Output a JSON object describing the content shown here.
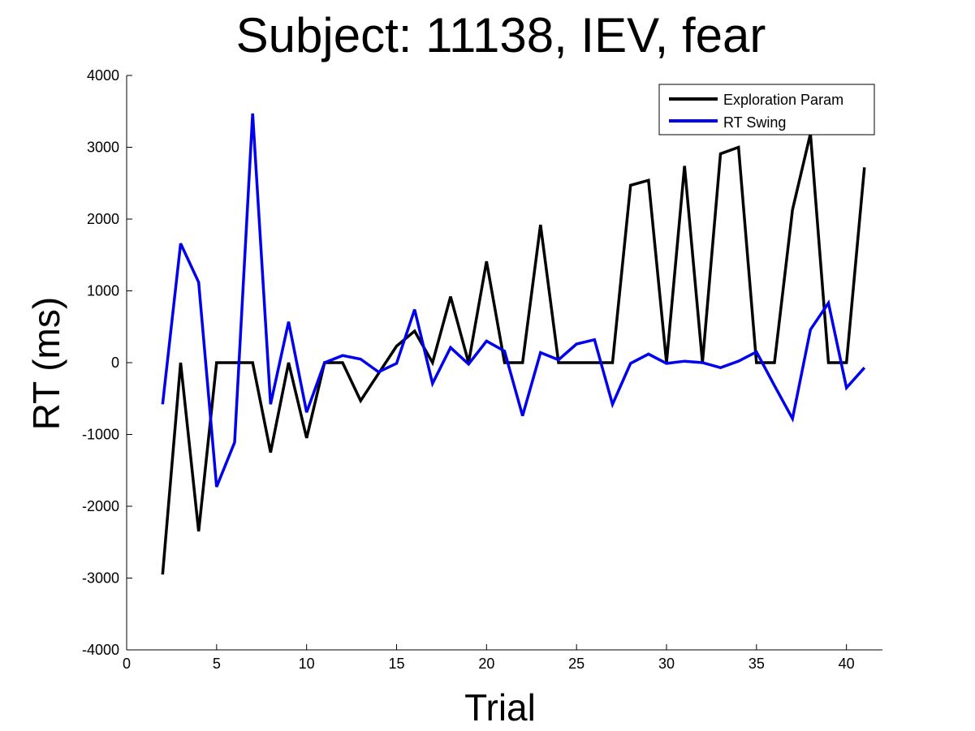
{
  "chart_data": {
    "type": "line",
    "title": "Subject: 11138, IEV, fear",
    "xlabel": "Trial",
    "ylabel": "RT (ms)",
    "xlim": [
      0,
      42
    ],
    "ylim": [
      -4000,
      4000
    ],
    "xticks": [
      0,
      5,
      10,
      15,
      20,
      25,
      30,
      35,
      40
    ],
    "yticks": [
      -4000,
      -3000,
      -2000,
      -1000,
      0,
      1000,
      2000,
      3000,
      4000
    ],
    "grid": false,
    "legend_position": "top-right",
    "x": [
      2,
      3,
      4,
      5,
      6,
      7,
      8,
      9,
      10,
      11,
      12,
      13,
      14,
      15,
      16,
      17,
      18,
      19,
      20,
      21,
      22,
      23,
      24,
      25,
      26,
      27,
      28,
      29,
      30,
      31,
      32,
      33,
      34,
      35,
      36,
      37,
      38,
      39,
      40,
      41
    ],
    "series": [
      {
        "name": "Exploration Param",
        "color": "#000000",
        "values": [
          -2950,
          0,
          -2350,
          0,
          0,
          0,
          -1250,
          0,
          -1050,
          0,
          0,
          -530,
          -150,
          230,
          440,
          0,
          920,
          0,
          1410,
          0,
          0,
          1920,
          0,
          0,
          0,
          0,
          2470,
          2540,
          0,
          2740,
          0,
          2910,
          3000,
          0,
          0,
          2130,
          3190,
          0,
          0,
          2720
        ]
      },
      {
        "name": "RT Swing",
        "color": "#0000ee",
        "values": [
          -580,
          1660,
          1120,
          -1730,
          -1110,
          3470,
          -580,
          570,
          -690,
          0,
          100,
          50,
          -130,
          -10,
          740,
          -290,
          210,
          -20,
          300,
          160,
          -740,
          140,
          40,
          260,
          320,
          -580,
          -10,
          120,
          -10,
          20,
          0,
          -70,
          20,
          150,
          -320,
          -780,
          460,
          830,
          -350,
          -70
        ]
      }
    ]
  }
}
